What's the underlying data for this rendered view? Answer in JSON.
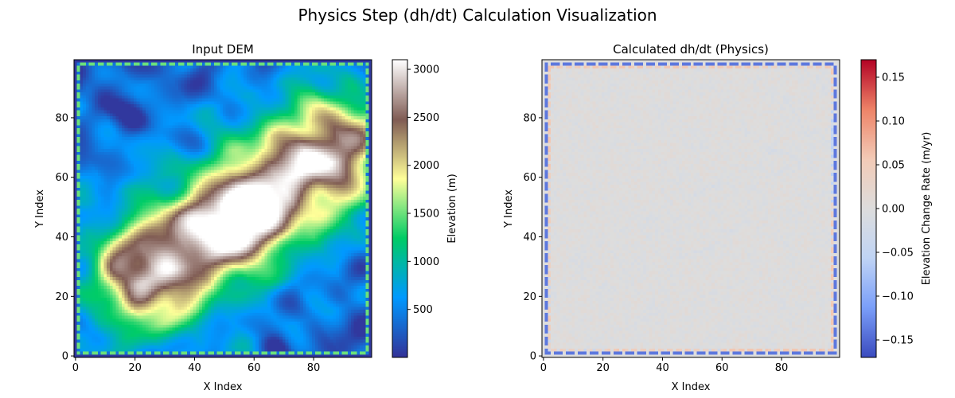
{
  "figure": {
    "title": "Physics Step (dh/dt) Calculation Visualization"
  },
  "chart_data": [
    {
      "type": "heatmap",
      "title": "Input DEM",
      "xlabel": "X Index",
      "ylabel": "Y Index",
      "xlim": [
        0,
        99
      ],
      "ylim": [
        0,
        99
      ],
      "xticks": [
        0,
        20,
        40,
        60,
        80
      ],
      "yticks": [
        0,
        20,
        40,
        60,
        80
      ],
      "grid_size": [
        100,
        100
      ],
      "colormap": "terrain",
      "colormap_stops": [
        "#333399",
        "#0099ff",
        "#00cc66",
        "#ffff99",
        "#805c54",
        "#ffffff"
      ],
      "colorbar": {
        "label": "Elevation (m)",
        "range": [
          0,
          3100
        ],
        "ticks": [
          500,
          1000,
          1500,
          2000,
          2500,
          3000
        ]
      },
      "description_values": {
        "max_elevation": 3100,
        "peak_location_xy": [
          57,
          45
        ],
        "ridge_direction": "southwest-northeast"
      }
    },
    {
      "type": "heatmap",
      "title": "Calculated dh/dt (Physics)",
      "xlabel": "X Index",
      "ylabel": "Y Index",
      "xlim": [
        0,
        99
      ],
      "ylim": [
        0,
        99
      ],
      "xticks": [
        0,
        20,
        40,
        60,
        80
      ],
      "yticks": [
        0,
        20,
        40,
        60,
        80
      ],
      "grid_size": [
        100,
        100
      ],
      "colormap": "coolwarm",
      "colormap_stops": [
        "#3b4cc0",
        "#7b9ff9",
        "#c0d4f5",
        "#dddddd",
        "#f2cbb7",
        "#ee8468",
        "#b40426"
      ],
      "colorbar": {
        "label": "Elevation Change Rate (m/yr)",
        "range": [
          -0.17,
          0.17
        ],
        "ticks": [
          -0.15,
          -0.1,
          -0.05,
          0.0,
          0.05,
          0.1,
          0.15
        ],
        "tick_labels": [
          "−0.15",
          "−0.10",
          "−0.05",
          "0.00",
          "0.05",
          "0.10",
          "0.15"
        ]
      }
    }
  ]
}
